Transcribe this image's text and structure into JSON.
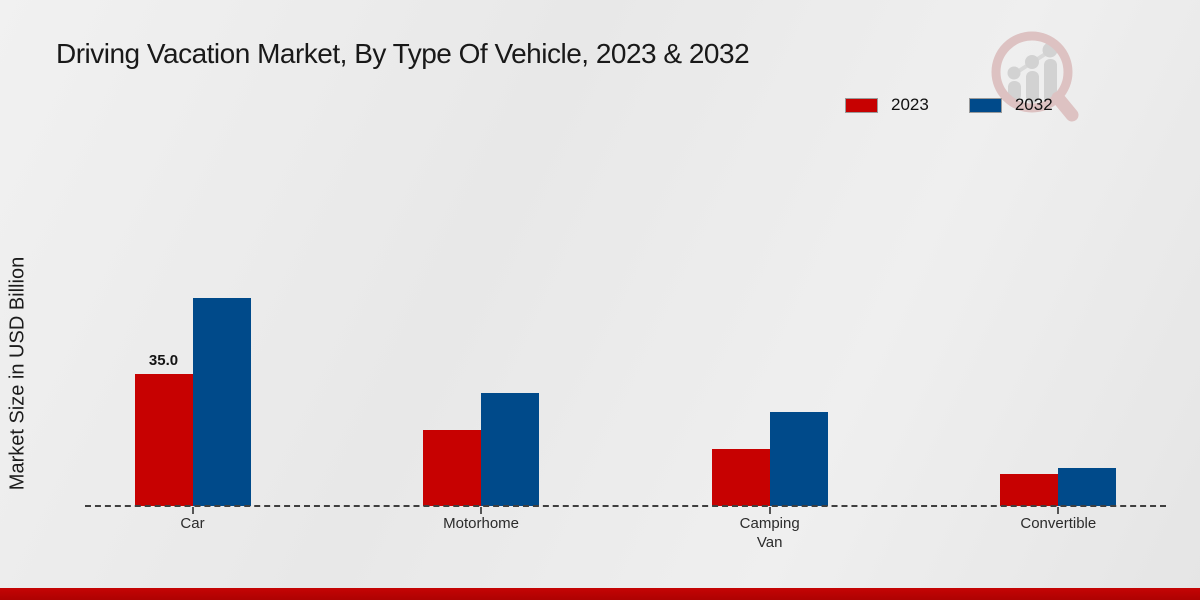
{
  "header": {
    "title": "Driving Vacation Market, By Type Of Vehicle, 2023 & 2032"
  },
  "axis": {
    "ylabel": "Market Size in USD Billion"
  },
  "legend": {
    "items": [
      {
        "label": "2023",
        "color": "#c70101"
      },
      {
        "label": "2032",
        "color": "#004a8a"
      }
    ]
  },
  "chart_data": {
    "type": "bar",
    "title": "Driving Vacation Market, By Type Of Vehicle, 2023 & 2032",
    "categories": [
      "Car",
      "Motorhome",
      "Camping Van",
      "Convertible"
    ],
    "series": [
      {
        "name": "2023",
        "color": "#c70101",
        "values": [
          35.0,
          20.0,
          15.0,
          8.5
        ]
      },
      {
        "name": "2032",
        "color": "#004a8a",
        "values": [
          55.0,
          30.0,
          25.0,
          10.0
        ]
      }
    ],
    "xlabel": "",
    "ylabel": "Market Size in USD Billion",
    "ylim": [
      0,
      60
    ],
    "grid": false,
    "legend_position": "top-right",
    "baseline_style": "dashed",
    "data_labels": [
      {
        "series_index": 0,
        "category_index": 0,
        "text": "35.0"
      }
    ]
  },
  "watermark": {
    "name": "market-research-future-logo",
    "ring_color": "#ddc2c2",
    "bar_color": "#d2d2d2"
  },
  "footer": {
    "color_top": "#c50404",
    "color_bottom": "#ad0202"
  }
}
